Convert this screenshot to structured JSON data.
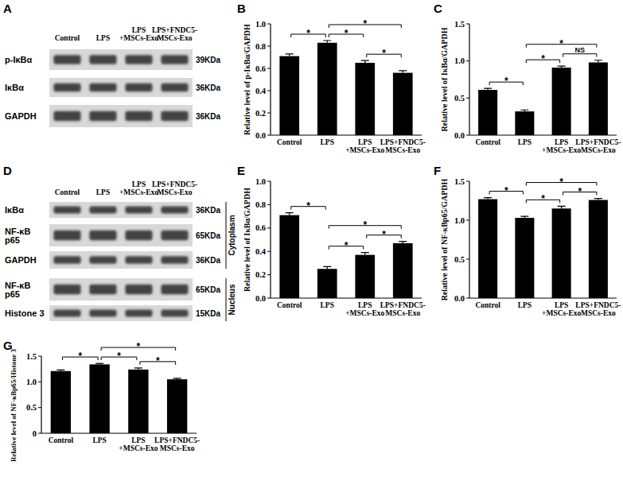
{
  "panels": [
    "A",
    "B",
    "C",
    "D",
    "E",
    "F",
    "G"
  ],
  "blots": [
    {
      "lanes": [
        "Control",
        "LPS",
        "LPS\n+MSCs-Exo",
        "LPS+FNDC5-\nMSCs-Exo"
      ],
      "rows": [
        {
          "label": "p-IκBα",
          "kda": "39KDa"
        },
        {
          "label": "IκBα",
          "kda": "36KDa"
        },
        {
          "label": "GAPDH",
          "kda": "36KDa"
        }
      ],
      "groups": []
    },
    {
      "lanes": [
        "Control",
        "LPS",
        "LPS\n+MSCs-Exo",
        "LPS+FNDC5-\nMSCs-Exo"
      ],
      "rows": [
        {
          "label": "IκBα",
          "kda": "36KDa"
        },
        {
          "label": "NF-κB\np65",
          "kda": "65KDa"
        },
        {
          "label": "GAPDH",
          "kda": "36KDa"
        },
        {
          "label": "NF-κB\np65",
          "kda": "65KDa"
        },
        {
          "label": "Histone 3",
          "kda": "15KDa"
        }
      ],
      "groups": [
        {
          "label": "Cytoplasm",
          "rows": [
            0,
            1,
            2
          ]
        },
        {
          "label": "Nucleus",
          "rows": [
            3,
            4
          ]
        }
      ]
    }
  ],
  "chart_data": [
    {
      "type": "bar",
      "y_label": "Relative level of p-IκBα/GAPDH",
      "categories": [
        "Control",
        "LPS",
        "LPS\n+MSCs-Exo",
        "LPS+FNDC5-\nMSCs-Exo"
      ],
      "values": [
        0.71,
        0.83,
        0.65,
        0.56
      ],
      "errors": [
        0.02,
        0.02,
        0.02,
        0.02
      ],
      "color": "#000000",
      "ylim": [
        0,
        1
      ],
      "yticks": [
        {
          "value": 0,
          "label": "0.0"
        },
        0.2,
        0.4,
        0.6,
        0.8,
        {
          "value": 1,
          "label": "1.0"
        }
      ],
      "annotations": [
        {
          "from": 0,
          "to": 1,
          "text": "*"
        },
        {
          "from": 1,
          "to": 2,
          "text": "*"
        },
        {
          "from": 1,
          "to": 3,
          "text": "*"
        },
        {
          "from": 2,
          "to": 3,
          "text": "*"
        }
      ]
    },
    {
      "type": "bar",
      "y_label": "Relative level of IκBα/GAPDH",
      "categories": [
        "Control",
        "LPS",
        "LPS\n+MSCs-Exo",
        "LPS+FNDC5-\nMSCs-Exo"
      ],
      "values": [
        0.61,
        0.32,
        0.91,
        0.98
      ],
      "errors": [
        0.02,
        0.02,
        0.02,
        0.03
      ],
      "color": "#000000",
      "ylim": [
        0,
        1.5
      ],
      "yticks": [
        {
          "value": 0,
          "label": "0.0"
        },
        0.5,
        {
          "value": 1,
          "label": "1.0"
        },
        1.5
      ],
      "annotations": [
        {
          "from": 0,
          "to": 1,
          "text": "*"
        },
        {
          "from": 1,
          "to": 2,
          "text": "*"
        },
        {
          "from": 1,
          "to": 3,
          "text": "*"
        },
        {
          "from": 2,
          "to": 3,
          "text": "NS"
        }
      ]
    },
    {
      "type": "bar",
      "y_label": "Relative level of IκBα/GAPDH",
      "categories": [
        "Control",
        "LPS",
        "LPS\n+MSCs-Exo",
        "LPS+FNDC5-\nMSCs-Exo"
      ],
      "values": [
        0.71,
        0.25,
        0.37,
        0.47
      ],
      "errors": [
        0.02,
        0.02,
        0.02,
        0.015
      ],
      "color": "#000000",
      "ylim": [
        0,
        1
      ],
      "yticks": [
        {
          "value": 0,
          "label": "0.0"
        },
        0.2,
        0.4,
        0.6,
        0.8,
        {
          "value": 1,
          "label": "1.0"
        }
      ],
      "annotations": [
        {
          "from": 0,
          "to": 1,
          "text": "*"
        },
        {
          "from": 1,
          "to": 2,
          "text": "*"
        },
        {
          "from": 1,
          "to": 3,
          "text": "*"
        },
        {
          "from": 2,
          "to": 3,
          "text": "*"
        }
      ]
    },
    {
      "type": "bar",
      "y_label": "Relative level of NF-κBp65/GAPDH",
      "categories": [
        "Control",
        "LPS",
        "LPS\n+MSCs-Exo",
        "LPS+FNDC5-\nMSCs-Exo"
      ],
      "values": [
        1.27,
        1.03,
        1.15,
        1.26
      ],
      "errors": [
        0.02,
        0.02,
        0.03,
        0.02
      ],
      "color": "#000000",
      "ylim": [
        0,
        1.5
      ],
      "yticks": [
        {
          "value": 0,
          "label": "0.0"
        },
        0.5,
        {
          "value": 1,
          "label": "1.0"
        },
        1.5
      ],
      "annotations": [
        {
          "from": 0,
          "to": 1,
          "text": "*"
        },
        {
          "from": 1,
          "to": 2,
          "text": "*"
        },
        {
          "from": 1,
          "to": 3,
          "text": "*"
        },
        {
          "from": 2,
          "to": 3,
          "text": "*"
        }
      ]
    },
    {
      "type": "bar",
      "y_label": "Relative level of NF-κBp65/Histone 3",
      "categories": [
        "Control",
        "LPS",
        "LPS\n+MSCs-Exo",
        "LPS+FNDC5-\nMSCs-Exo"
      ],
      "values": [
        1.21,
        1.34,
        1.24,
        1.05
      ],
      "errors": [
        0.02,
        0.02,
        0.03,
        0.02
      ],
      "color": "#000000",
      "ylim": [
        0,
        1.5
      ],
      "yticks": [
        0,
        0.5,
        {
          "value": 1,
          "label": "1.0"
        },
        1.5
      ],
      "annotations": [
        {
          "from": 0,
          "to": 1,
          "text": "*"
        },
        {
          "from": 1,
          "to": 2,
          "text": "*"
        },
        {
          "from": 1,
          "to": 3,
          "text": "*"
        },
        {
          "from": 2,
          "to": 3,
          "text": "*"
        }
      ]
    }
  ]
}
